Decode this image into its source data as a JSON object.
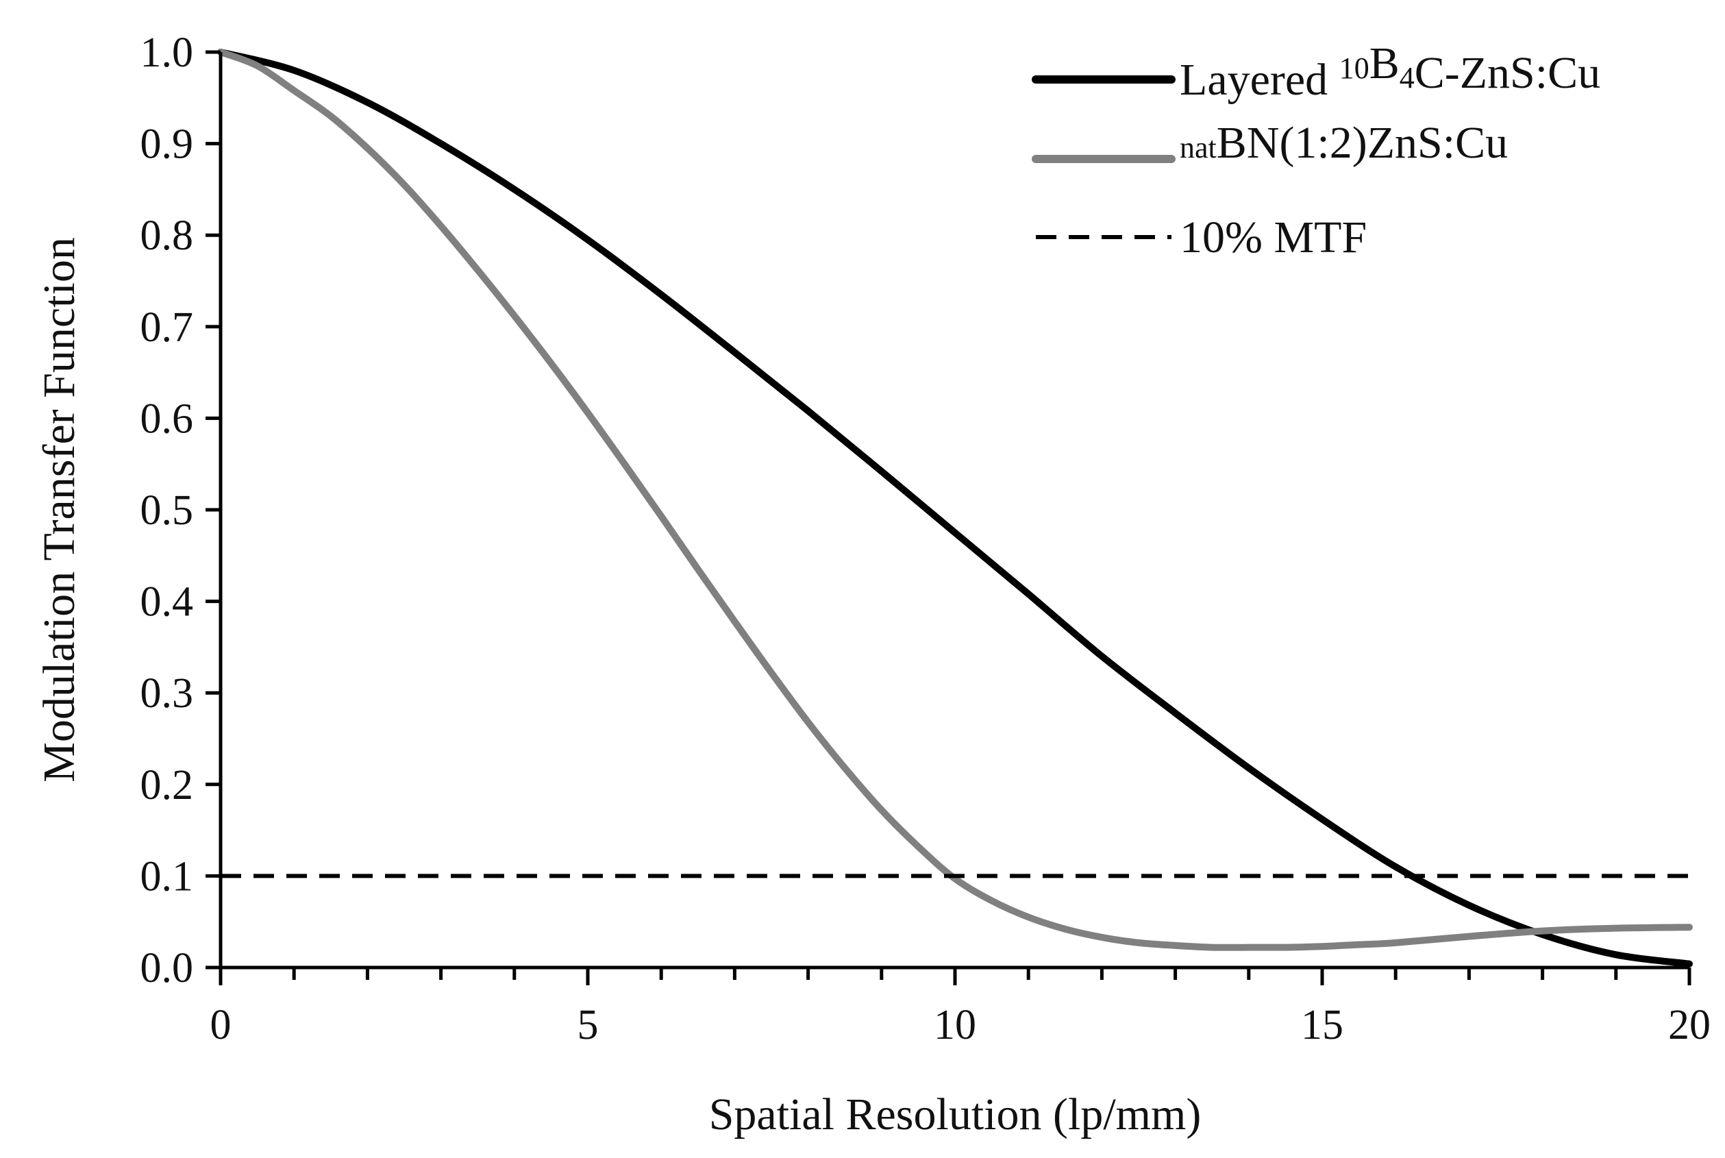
{
  "chart_data": {
    "type": "line",
    "title": "",
    "xlabel": "Spatial Resolution (lp/mm)",
    "ylabel": "Modulation Transfer Function",
    "xlim": [
      0,
      20
    ],
    "ylim": [
      0,
      1.0
    ],
    "x_ticks": [
      0,
      5,
      10,
      15,
      20
    ],
    "x_tick_labels": [
      "0",
      "5",
      "10",
      "15",
      "20"
    ],
    "x_minor_step": 1,
    "y_ticks": [
      0.0,
      0.1,
      0.2,
      0.3,
      0.4,
      0.5,
      0.6,
      0.7,
      0.8,
      0.9,
      1.0
    ],
    "y_tick_labels": [
      "0.0",
      "0.1",
      "0.2",
      "0.3",
      "0.4",
      "0.5",
      "0.6",
      "0.7",
      "0.8",
      "0.9",
      "1.0"
    ],
    "grid": false,
    "legend_position": "top-right",
    "series": [
      {
        "name": "Layered 10B4C-ZnS:Cu",
        "legend_parts": [
          {
            "text": "Layered ",
            "style": "normal"
          },
          {
            "text": "10",
            "style": "sup"
          },
          {
            "text": "B",
            "style": "normal"
          },
          {
            "text": "4",
            "style": "sub"
          },
          {
            "text": "C-ZnS:Cu",
            "style": "normal"
          }
        ],
        "color": "#000000",
        "dash": "solid",
        "x": [
          0,
          1,
          2,
          3,
          4,
          5,
          6,
          7,
          8,
          9,
          10,
          11,
          12,
          13,
          14,
          15,
          16,
          17,
          18,
          19,
          20
        ],
        "y": [
          1.0,
          0.98,
          0.945,
          0.9,
          0.85,
          0.795,
          0.735,
          0.672,
          0.608,
          0.542,
          0.475,
          0.408,
          0.34,
          0.278,
          0.218,
          0.162,
          0.11,
          0.068,
          0.036,
          0.014,
          0.004
        ]
      },
      {
        "name": "natBN(1:2)ZnS:Cu",
        "legend_parts": [
          {
            "text": "nat",
            "style": "sup"
          },
          {
            "text": "BN(1:2)ZnS:Cu",
            "style": "normal"
          }
        ],
        "color": "#808080",
        "dash": "solid",
        "x": [
          0,
          0.5,
          1,
          1.5,
          2,
          2.5,
          3,
          3.5,
          4,
          4.5,
          5,
          5.5,
          6,
          6.5,
          7,
          7.5,
          8,
          8.5,
          9,
          9.5,
          10,
          10.5,
          11,
          11.5,
          12,
          12.5,
          13,
          13.5,
          14,
          14.5,
          15,
          15.5,
          16,
          17,
          18,
          19,
          20
        ],
        "y": [
          1.0,
          0.985,
          0.958,
          0.93,
          0.895,
          0.855,
          0.81,
          0.762,
          0.712,
          0.66,
          0.606,
          0.55,
          0.493,
          0.435,
          0.378,
          0.322,
          0.268,
          0.218,
          0.172,
          0.132,
          0.097,
          0.073,
          0.055,
          0.042,
          0.033,
          0.027,
          0.024,
          0.022,
          0.022,
          0.022,
          0.023,
          0.025,
          0.027,
          0.034,
          0.04,
          0.043,
          0.044
        ]
      },
      {
        "name": "10% MTF",
        "legend_parts": [
          {
            "text": "10% MTF",
            "style": "normal"
          }
        ],
        "color": "#000000",
        "dash": "dashed",
        "x": [
          0,
          20
        ],
        "y": [
          0.1,
          0.1
        ]
      }
    ]
  }
}
